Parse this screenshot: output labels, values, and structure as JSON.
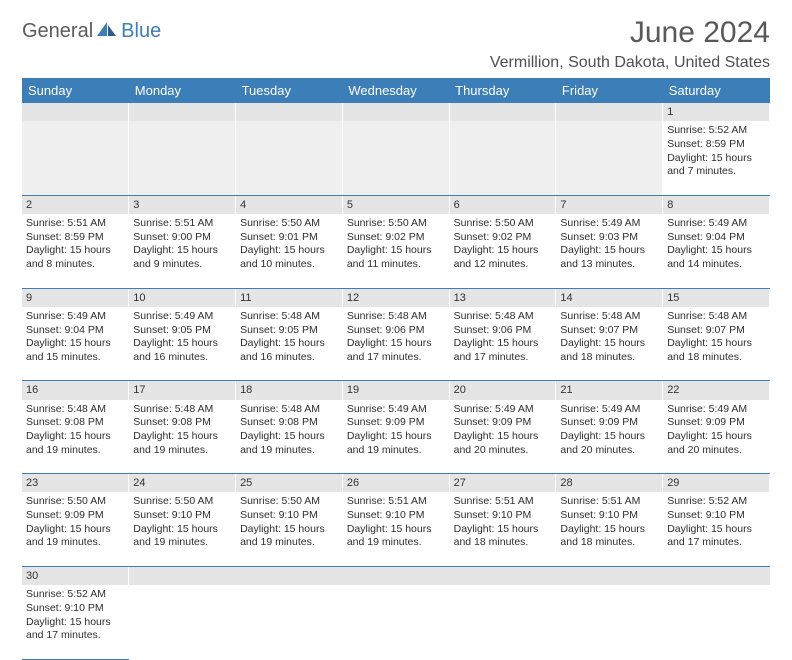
{
  "logo": {
    "text_a": "General",
    "text_b": "Blue"
  },
  "title": "June 2024",
  "location": "Vermillion, South Dakota, United States",
  "colors": {
    "header_bg": "#3b7eb8",
    "header_fg": "#ffffff",
    "daynum_bg": "#e5e5e5",
    "row_border": "#3b7eb8",
    "logo_gray": "#5b5b5b",
    "logo_blue": "#3b7eb8",
    "title_color": "#595959"
  },
  "weekdays": [
    "Sunday",
    "Monday",
    "Tuesday",
    "Wednesday",
    "Thursday",
    "Friday",
    "Saturday"
  ],
  "weeks": [
    [
      null,
      null,
      null,
      null,
      null,
      null,
      {
        "n": "1",
        "sr": "Sunrise: 5:52 AM",
        "ss": "Sunset: 8:59 PM",
        "dl": "Daylight: 15 hours and 7 minutes."
      }
    ],
    [
      {
        "n": "2",
        "sr": "Sunrise: 5:51 AM",
        "ss": "Sunset: 8:59 PM",
        "dl": "Daylight: 15 hours and 8 minutes."
      },
      {
        "n": "3",
        "sr": "Sunrise: 5:51 AM",
        "ss": "Sunset: 9:00 PM",
        "dl": "Daylight: 15 hours and 9 minutes."
      },
      {
        "n": "4",
        "sr": "Sunrise: 5:50 AM",
        "ss": "Sunset: 9:01 PM",
        "dl": "Daylight: 15 hours and 10 minutes."
      },
      {
        "n": "5",
        "sr": "Sunrise: 5:50 AM",
        "ss": "Sunset: 9:02 PM",
        "dl": "Daylight: 15 hours and 11 minutes."
      },
      {
        "n": "6",
        "sr": "Sunrise: 5:50 AM",
        "ss": "Sunset: 9:02 PM",
        "dl": "Daylight: 15 hours and 12 minutes."
      },
      {
        "n": "7",
        "sr": "Sunrise: 5:49 AM",
        "ss": "Sunset: 9:03 PM",
        "dl": "Daylight: 15 hours and 13 minutes."
      },
      {
        "n": "8",
        "sr": "Sunrise: 5:49 AM",
        "ss": "Sunset: 9:04 PM",
        "dl": "Daylight: 15 hours and 14 minutes."
      }
    ],
    [
      {
        "n": "9",
        "sr": "Sunrise: 5:49 AM",
        "ss": "Sunset: 9:04 PM",
        "dl": "Daylight: 15 hours and 15 minutes."
      },
      {
        "n": "10",
        "sr": "Sunrise: 5:49 AM",
        "ss": "Sunset: 9:05 PM",
        "dl": "Daylight: 15 hours and 16 minutes."
      },
      {
        "n": "11",
        "sr": "Sunrise: 5:48 AM",
        "ss": "Sunset: 9:05 PM",
        "dl": "Daylight: 15 hours and 16 minutes."
      },
      {
        "n": "12",
        "sr": "Sunrise: 5:48 AM",
        "ss": "Sunset: 9:06 PM",
        "dl": "Daylight: 15 hours and 17 minutes."
      },
      {
        "n": "13",
        "sr": "Sunrise: 5:48 AM",
        "ss": "Sunset: 9:06 PM",
        "dl": "Daylight: 15 hours and 17 minutes."
      },
      {
        "n": "14",
        "sr": "Sunrise: 5:48 AM",
        "ss": "Sunset: 9:07 PM",
        "dl": "Daylight: 15 hours and 18 minutes."
      },
      {
        "n": "15",
        "sr": "Sunrise: 5:48 AM",
        "ss": "Sunset: 9:07 PM",
        "dl": "Daylight: 15 hours and 18 minutes."
      }
    ],
    [
      {
        "n": "16",
        "sr": "Sunrise: 5:48 AM",
        "ss": "Sunset: 9:08 PM",
        "dl": "Daylight: 15 hours and 19 minutes."
      },
      {
        "n": "17",
        "sr": "Sunrise: 5:48 AM",
        "ss": "Sunset: 9:08 PM",
        "dl": "Daylight: 15 hours and 19 minutes."
      },
      {
        "n": "18",
        "sr": "Sunrise: 5:48 AM",
        "ss": "Sunset: 9:08 PM",
        "dl": "Daylight: 15 hours and 19 minutes."
      },
      {
        "n": "19",
        "sr": "Sunrise: 5:49 AM",
        "ss": "Sunset: 9:09 PM",
        "dl": "Daylight: 15 hours and 19 minutes."
      },
      {
        "n": "20",
        "sr": "Sunrise: 5:49 AM",
        "ss": "Sunset: 9:09 PM",
        "dl": "Daylight: 15 hours and 20 minutes."
      },
      {
        "n": "21",
        "sr": "Sunrise: 5:49 AM",
        "ss": "Sunset: 9:09 PM",
        "dl": "Daylight: 15 hours and 20 minutes."
      },
      {
        "n": "22",
        "sr": "Sunrise: 5:49 AM",
        "ss": "Sunset: 9:09 PM",
        "dl": "Daylight: 15 hours and 20 minutes."
      }
    ],
    [
      {
        "n": "23",
        "sr": "Sunrise: 5:50 AM",
        "ss": "Sunset: 9:09 PM",
        "dl": "Daylight: 15 hours and 19 minutes."
      },
      {
        "n": "24",
        "sr": "Sunrise: 5:50 AM",
        "ss": "Sunset: 9:10 PM",
        "dl": "Daylight: 15 hours and 19 minutes."
      },
      {
        "n": "25",
        "sr": "Sunrise: 5:50 AM",
        "ss": "Sunset: 9:10 PM",
        "dl": "Daylight: 15 hours and 19 minutes."
      },
      {
        "n": "26",
        "sr": "Sunrise: 5:51 AM",
        "ss": "Sunset: 9:10 PM",
        "dl": "Daylight: 15 hours and 19 minutes."
      },
      {
        "n": "27",
        "sr": "Sunrise: 5:51 AM",
        "ss": "Sunset: 9:10 PM",
        "dl": "Daylight: 15 hours and 18 minutes."
      },
      {
        "n": "28",
        "sr": "Sunrise: 5:51 AM",
        "ss": "Sunset: 9:10 PM",
        "dl": "Daylight: 15 hours and 18 minutes."
      },
      {
        "n": "29",
        "sr": "Sunrise: 5:52 AM",
        "ss": "Sunset: 9:10 PM",
        "dl": "Daylight: 15 hours and 17 minutes."
      }
    ],
    [
      {
        "n": "30",
        "sr": "Sunrise: 5:52 AM",
        "ss": "Sunset: 9:10 PM",
        "dl": "Daylight: 15 hours and 17 minutes."
      },
      null,
      null,
      null,
      null,
      null,
      null
    ]
  ]
}
